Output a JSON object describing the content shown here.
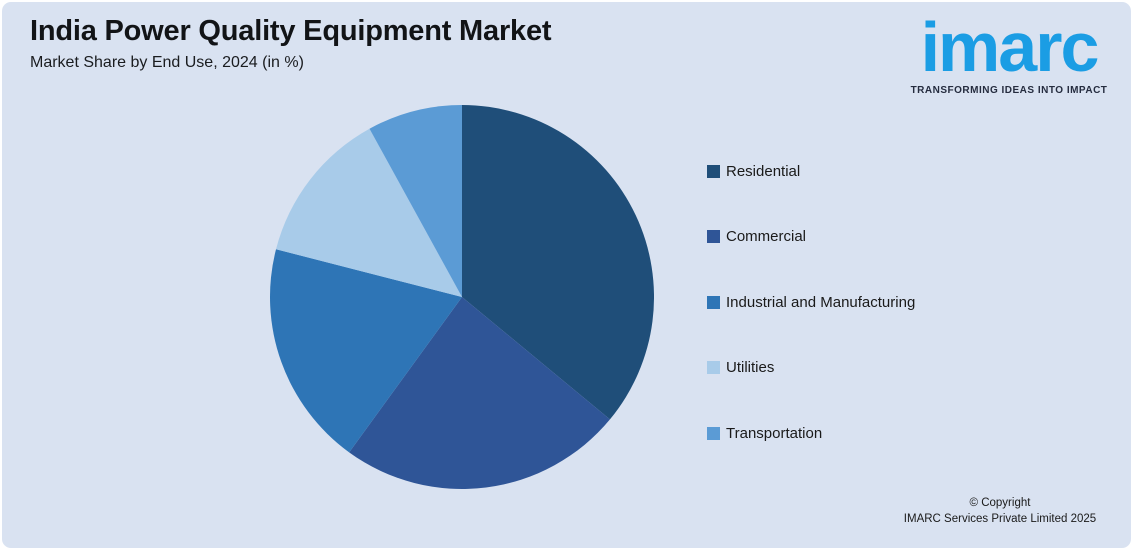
{
  "page": {
    "background": "#D9E2F1",
    "frame_color": "#FFFFFF"
  },
  "header": {
    "title": "India Power Quality Equipment Market",
    "subtitle": "Market Share by End Use, 2024 (in %)"
  },
  "logo": {
    "wordmark": "imarc",
    "tagline": "TRANSFORMING IDEAS INTO IMPACT",
    "wordmark_color": "#1B9DE4",
    "tagline_color": "#252C3F"
  },
  "chart_data": {
    "type": "pie",
    "title": "India Power Quality Equipment Market",
    "subtitle": "Market Share by End Use, 2024 (in %)",
    "unit": "%",
    "legend_position": "right",
    "start_angle_deg": 0,
    "direction": "clockwise",
    "segments": [
      {
        "label": "Residential",
        "value": 36,
        "color": "#1F4E79"
      },
      {
        "label": "Commercial",
        "value": 24,
        "color": "#2F5597"
      },
      {
        "label": "Industrial and Manufacturing",
        "value": 19,
        "color": "#2E75B6"
      },
      {
        "label": "Utilities",
        "value": 13,
        "color": "#A8CBE9"
      },
      {
        "label": "Transportation",
        "value": 8,
        "color": "#5B9BD5"
      }
    ]
  },
  "footer": {
    "copyright_line1": "© Copyright",
    "copyright_line2": "IMARC Services Private Limited 2025"
  }
}
